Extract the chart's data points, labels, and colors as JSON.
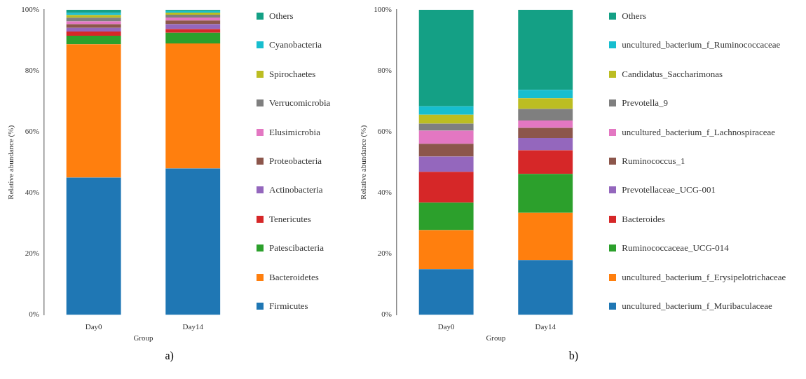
{
  "chart_data": [
    {
      "type": "bar",
      "stacked": true,
      "ylabel": "Relative abundance (%)",
      "xlabel": "Group",
      "categories": [
        "Day0",
        "Day14"
      ],
      "ylim": [
        0,
        100
      ],
      "yticks": [
        {
          "value": 0,
          "label": "0%"
        },
        {
          "value": 20,
          "label": "20%"
        },
        {
          "value": 40,
          "label": "40%"
        },
        {
          "value": 60,
          "label": "60%"
        },
        {
          "value": 80,
          "label": "80%"
        },
        {
          "value": 100,
          "label": "100%"
        }
      ],
      "grid": false,
      "legend": "right",
      "annotations": [
        "a)"
      ],
      "series": [
        {
          "name": "Firmicutes",
          "color": "#1f77b4",
          "values": [
            45,
            48
          ]
        },
        {
          "name": "Bacteroidetes",
          "color": "#ff7f0e",
          "values": [
            43.7,
            41
          ]
        },
        {
          "name": "Patescibacteria",
          "color": "#2ca02c",
          "values": [
            2.8,
            3.5
          ]
        },
        {
          "name": "Tenericutes",
          "color": "#d62728",
          "values": [
            1.4,
            1.2
          ]
        },
        {
          "name": "Actinobacteria",
          "color": "#9467bd",
          "values": [
            1.2,
            1.6
          ]
        },
        {
          "name": "Proteobacteria",
          "color": "#8c564b",
          "values": [
            1.2,
            1.2
          ]
        },
        {
          "name": "Elusimicrobia",
          "color": "#e377c2",
          "values": [
            0.9,
            1
          ]
        },
        {
          "name": "Verrucomicrobia",
          "color": "#7f7f7f",
          "values": [
            1.2,
            0.9
          ]
        },
        {
          "name": "Spirochaetes",
          "color": "#bcbd22",
          "values": [
            0.9,
            0.7
          ]
        },
        {
          "name": "Cyanobacteria",
          "color": "#17becf",
          "values": [
            0.7,
            0.5
          ]
        },
        {
          "name": "Others",
          "color": "#14a085",
          "values": [
            1,
            0.7
          ]
        }
      ]
    },
    {
      "type": "bar",
      "stacked": true,
      "ylabel": "Relative abundance (%)",
      "xlabel": "Group",
      "categories": [
        "Day0",
        "Day14"
      ],
      "ylim": [
        0,
        100
      ],
      "yticks": [
        {
          "value": 0,
          "label": "0%"
        },
        {
          "value": 20,
          "label": "20%"
        },
        {
          "value": 40,
          "label": "40%"
        },
        {
          "value": 60,
          "label": "60%"
        },
        {
          "value": 80,
          "label": "80%"
        },
        {
          "value": 100,
          "label": "100%"
        }
      ],
      "grid": false,
      "legend": "right",
      "annotations": [
        "b)"
      ],
      "series": [
        {
          "name": "uncultured_bacterium_f_Muribaculaceae",
          "color": "#1f77b4",
          "values": [
            15,
            18
          ]
        },
        {
          "name": "uncultured_bacterium_f_Erysipelotrichaceae",
          "color": "#ff7f0e",
          "values": [
            12.8,
            15.5
          ]
        },
        {
          "name": "Ruminococcaceae_UCG-014",
          "color": "#2ca02c",
          "values": [
            9,
            12.7
          ]
        },
        {
          "name": "Bacteroides",
          "color": "#d62728",
          "values": [
            10.1,
            7.8
          ]
        },
        {
          "name": "Prevotellaceae_UCG-001",
          "color": "#9467bd",
          "values": [
            5,
            4
          ]
        },
        {
          "name": "Ruminococcus_1",
          "color": "#8c564b",
          "values": [
            4.2,
            3.3
          ]
        },
        {
          "name": "uncultured_bacterium_f_Lachnospiraceae",
          "color": "#e377c2",
          "values": [
            4.3,
            2.4
          ]
        },
        {
          "name": "Prevotella_9",
          "color": "#7f7f7f",
          "values": [
            2.3,
            3.8
          ]
        },
        {
          "name": "Candidatus_Saccharimonas",
          "color": "#bcbd22",
          "values": [
            2.9,
            3.5
          ]
        },
        {
          "name": "uncultured_bacterium_f_Ruminococcaceae",
          "color": "#17becf",
          "values": [
            2.8,
            2.8
          ]
        },
        {
          "name": "Others",
          "color": "#14a085",
          "values": [
            31.6,
            26.2
          ]
        }
      ]
    }
  ]
}
